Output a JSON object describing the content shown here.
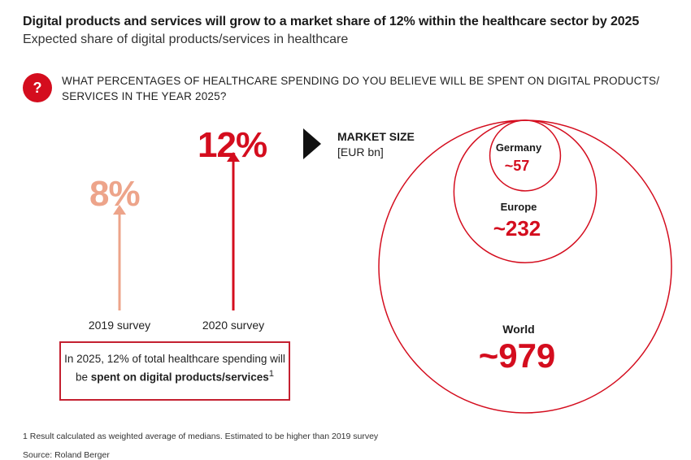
{
  "header": {
    "title": "Digital products and services will grow to a market share of 12% within the healthcare sector by 2025",
    "subtitle": "Expected share of digital products/services in healthcare"
  },
  "question": {
    "badge": "?",
    "text": "WHAT PERCENTAGES OF HEALTHCARE SPENDING DO YOU BELIEVE WILL BE SPENT ON DIGITAL PRODUCTS/ SERVICES IN THE YEAR 2025?"
  },
  "note": {
    "line_pre": "In 2025, 12% of total healthcare spending will be ",
    "line_bold": "spent on digital products/services",
    "sup": "1"
  },
  "market": {
    "title": "MARKET SIZE",
    "unit": "[EUR bn]"
  },
  "footnote": "1  Result calculated as weighted average of medians. Estimated to be higher than 2019 survey",
  "source": "Source: Roland Berger",
  "colors": {
    "accent": "#d40d1e",
    "light": "#eda48a",
    "border": "#c42030"
  },
  "chart_data": [
    {
      "type": "bar",
      "categories": [
        "2019 survey",
        "2020 survey"
      ],
      "values": [
        8,
        12
      ],
      "value_labels": [
        "8%",
        "12%"
      ]
    },
    {
      "type": "bubble",
      "title": "MARKET SIZE",
      "unit": "[EUR bn]",
      "categories": [
        "Germany",
        "Europe",
        "World"
      ],
      "values": [
        57,
        232,
        979
      ],
      "value_labels": [
        "~57",
        "~232",
        "~979"
      ]
    }
  ]
}
